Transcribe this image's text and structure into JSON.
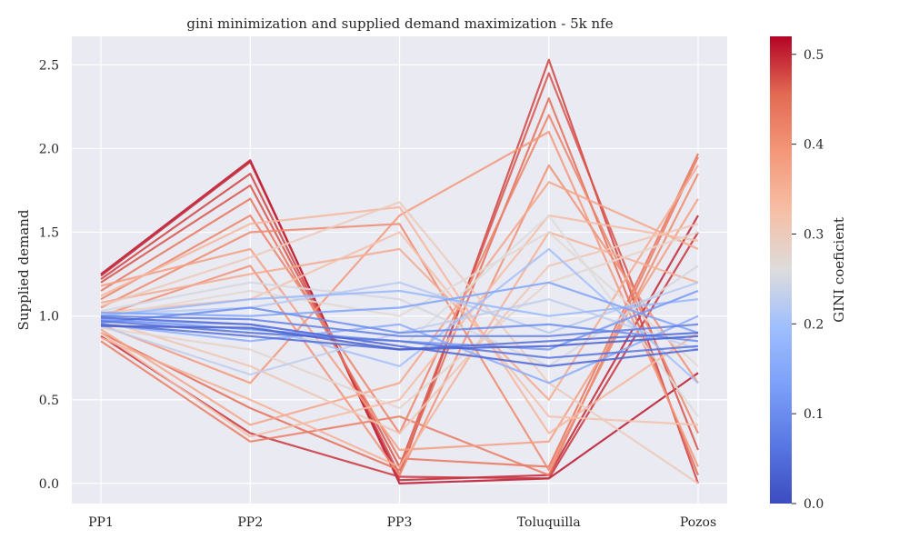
{
  "chart_data": {
    "type": "line",
    "subtype": "parallel-coordinates",
    "title": "gini minimization and supplied demand maximization - 5k nfe",
    "ylabel": "Supplied demand",
    "xlabel": "",
    "categories": [
      "PP1",
      "PP2",
      "PP3",
      "Toluquilla",
      "Pozos"
    ],
    "ylim": [
      -0.12,
      2.67
    ],
    "yticks": [
      0.0,
      0.5,
      1.0,
      1.5,
      2.0,
      2.5
    ],
    "ytick_labels": [
      "0.0",
      "0.5",
      "1.0",
      "1.5",
      "2.0",
      "2.5"
    ],
    "grid": true,
    "colormap": "coolwarm",
    "colorbar": {
      "label": "GINI coeficient",
      "range": [
        0.0,
        0.52
      ],
      "ticks": [
        0.0,
        0.1,
        0.2,
        0.3,
        0.4,
        0.5
      ],
      "tick_labels": [
        "0.0",
        "0.1",
        "0.2",
        "0.3",
        "0.4",
        "0.5"
      ]
    },
    "series": [
      {
        "values": [
          1.25,
          1.93,
          0.0,
          0.03,
          0.66
        ],
        "gini": 0.51
      },
      {
        "values": [
          1.24,
          1.92,
          0.02,
          0.05,
          1.6
        ],
        "gini": 0.5
      },
      {
        "values": [
          1.22,
          1.85,
          0.05,
          2.53,
          0.0
        ],
        "gini": 0.48
      },
      {
        "values": [
          1.2,
          1.78,
          0.1,
          2.45,
          0.2
        ],
        "gini": 0.47
      },
      {
        "values": [
          0.88,
          0.3,
          0.04,
          0.03,
          1.5
        ],
        "gini": 0.49
      },
      {
        "values": [
          0.9,
          0.45,
          0.08,
          2.3,
          0.05
        ],
        "gini": 0.45
      },
      {
        "values": [
          1.15,
          1.7,
          0.15,
          0.1,
          1.97
        ],
        "gini": 0.44
      },
      {
        "values": [
          1.1,
          1.6,
          0.3,
          2.2,
          0.3
        ],
        "gini": 0.42
      },
      {
        "values": [
          0.85,
          0.25,
          0.4,
          0.05,
          1.95
        ],
        "gini": 0.43
      },
      {
        "values": [
          1.05,
          1.5,
          1.55,
          0.08,
          1.85
        ],
        "gini": 0.41
      },
      {
        "values": [
          1.0,
          1.3,
          0.05,
          1.9,
          0.6
        ],
        "gini": 0.4
      },
      {
        "values": [
          0.95,
          0.6,
          1.6,
          2.1,
          0.1
        ],
        "gini": 0.39
      },
      {
        "values": [
          1.18,
          1.4,
          0.2,
          0.25,
          1.7
        ],
        "gini": 0.38
      },
      {
        "values": [
          0.92,
          0.35,
          0.6,
          1.8,
          1.4
        ],
        "gini": 0.37
      },
      {
        "values": [
          1.08,
          1.25,
          1.4,
          0.5,
          1.9
        ],
        "gini": 0.36
      },
      {
        "values": [
          0.87,
          0.5,
          0.1,
          1.5,
          1.2
        ],
        "gini": 0.35
      },
      {
        "values": [
          1.12,
          1.55,
          1.65,
          0.3,
          0.9
        ],
        "gini": 0.34
      },
      {
        "values": [
          0.9,
          0.28,
          0.5,
          1.6,
          1.45
        ],
        "gini": 0.33
      },
      {
        "values": [
          1.02,
          1.1,
          1.5,
          0.4,
          0.35
        ],
        "gini": 0.32
      },
      {
        "values": [
          0.98,
          0.7,
          0.3,
          1.3,
          1.55
        ],
        "gini": 0.31
      },
      {
        "values": [
          1.06,
          1.35,
          1.68,
          0.6,
          0.0
        ],
        "gini": 0.3
      },
      {
        "values": [
          0.93,
          0.8,
          0.45,
          1.2,
          1.5
        ],
        "gini": 0.28
      },
      {
        "values": [
          1.0,
          1.15,
          1.0,
          1.5,
          0.7
        ],
        "gini": 0.27
      },
      {
        "values": [
          0.96,
          0.9,
          0.8,
          1.6,
          0.4
        ],
        "gini": 0.26
      },
      {
        "values": [
          1.03,
          1.2,
          1.1,
          0.7,
          1.3
        ],
        "gini": 0.25
      },
      {
        "values": [
          0.94,
          0.65,
          0.9,
          1.1,
          0.8
        ],
        "gini": 0.23
      },
      {
        "values": [
          1.01,
          1.05,
          1.2,
          0.9,
          1.2
        ],
        "gini": 0.22
      },
      {
        "values": [
          0.97,
          0.95,
          0.7,
          1.4,
          0.6
        ],
        "gini": 0.2
      },
      {
        "values": [
          1.0,
          1.1,
          1.15,
          1.0,
          1.1
        ],
        "gini": 0.18
      },
      {
        "values": [
          0.95,
          0.85,
          0.95,
          0.6,
          1.0
        ],
        "gini": 0.16
      },
      {
        "values": [
          1.02,
          1.0,
          1.05,
          1.2,
          0.9
        ],
        "gini": 0.14
      },
      {
        "values": [
          0.98,
          0.92,
          0.85,
          0.8,
          1.15
        ],
        "gini": 0.12
      },
      {
        "values": [
          0.96,
          1.05,
          0.9,
          0.95,
          0.85
        ],
        "gini": 0.1
      },
      {
        "values": [
          1.0,
          0.98,
          0.88,
          0.88,
          0.95
        ],
        "gini": 0.08
      },
      {
        "values": [
          0.97,
          0.9,
          0.85,
          0.75,
          0.82
        ],
        "gini": 0.06
      },
      {
        "values": [
          0.95,
          0.88,
          0.8,
          0.85,
          0.9
        ],
        "gini": 0.05
      },
      {
        "values": [
          0.99,
          0.95,
          0.82,
          0.7,
          0.8
        ],
        "gini": 0.04
      },
      {
        "values": [
          0.94,
          0.93,
          0.8,
          0.82,
          0.88
        ],
        "gini": 0.03
      }
    ]
  }
}
